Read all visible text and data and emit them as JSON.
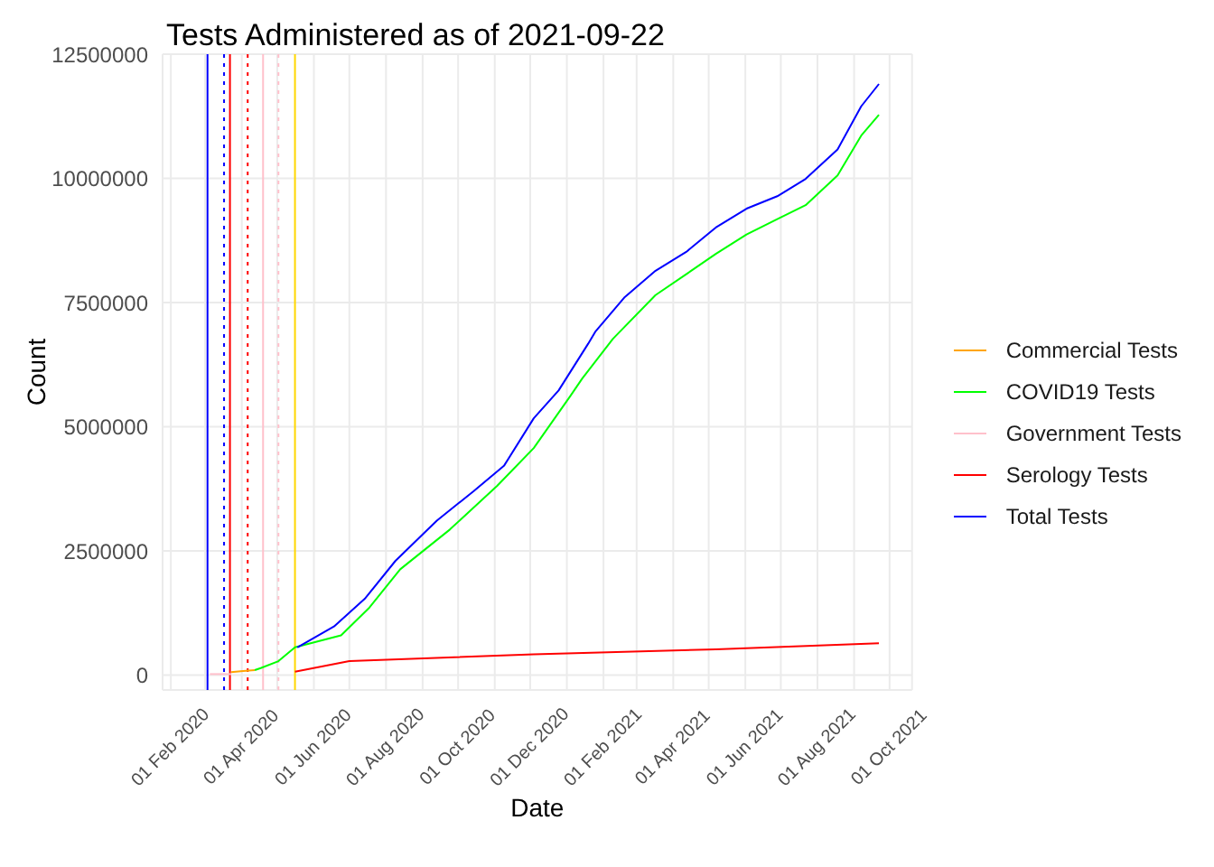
{
  "chart_data": {
    "type": "line",
    "title": "Tests Administered as of 2021-09-22",
    "xlabel": "Date",
    "ylabel": "Count",
    "xlim": [
      "2020-01-25",
      "2021-10-20"
    ],
    "xticks": [
      {
        "value": "2020-02-01",
        "label": "01 Feb 2020"
      },
      {
        "value": "2020-03-01",
        "label": null
      },
      {
        "value": "2020-04-01",
        "label": "01 Apr 2020"
      },
      {
        "value": "2020-05-01",
        "label": null
      },
      {
        "value": "2020-06-01",
        "label": "01 Jun 2020"
      },
      {
        "value": "2020-07-01",
        "label": null
      },
      {
        "value": "2020-08-01",
        "label": "01 Aug 2020"
      },
      {
        "value": "2020-09-01",
        "label": null
      },
      {
        "value": "2020-10-01",
        "label": "01 Oct 2020"
      },
      {
        "value": "2020-11-01",
        "label": null
      },
      {
        "value": "2020-12-01",
        "label": "01 Dec 2020"
      },
      {
        "value": "2021-01-01",
        "label": null
      },
      {
        "value": "2021-02-01",
        "label": "01 Feb 2021"
      },
      {
        "value": "2021-03-01",
        "label": null
      },
      {
        "value": "2021-04-01",
        "label": "01 Apr 2021"
      },
      {
        "value": "2021-05-01",
        "label": null
      },
      {
        "value": "2021-06-01",
        "label": "01 Jun 2021"
      },
      {
        "value": "2021-07-01",
        "label": null
      },
      {
        "value": "2021-08-01",
        "label": "01 Aug 2021"
      },
      {
        "value": "2021-09-01",
        "label": null
      },
      {
        "value": "2021-10-01",
        "label": "01 Oct 2021"
      }
    ],
    "ylim": [
      -300000,
      12500000
    ],
    "yticks": [
      0,
      2500000,
      5000000,
      7500000,
      10000000,
      12500000
    ],
    "grid": true,
    "legend": "right",
    "marker": "none",
    "line_style": "solid",
    "series": [
      {
        "name": "Commercial Tests",
        "color": "#ffa500",
        "x": [
          "2020-03-23",
          "2020-04-02",
          "2020-04-12"
        ],
        "values": [
          60000,
          80000,
          100000
        ]
      },
      {
        "name": "COVID19 Tests",
        "color": "#00ff00",
        "x": [
          "2020-04-12",
          "2020-04-17",
          "2020-05-02",
          "2020-05-16",
          "2020-06-24",
          "2020-07-18",
          "2020-08-13",
          "2020-09-24",
          "2020-11-03",
          "2020-12-04",
          "2021-01-04",
          "2021-01-14",
          "2021-02-09",
          "2021-03-17",
          "2021-04-12",
          "2021-05-07",
          "2021-06-02",
          "2021-06-28",
          "2021-07-22",
          "2021-08-18",
          "2021-09-07",
          "2021-09-22"
        ],
        "values": [
          100000,
          140000,
          280000,
          560000,
          800000,
          1360000,
          2130000,
          2930000,
          3810000,
          4570000,
          5620000,
          5970000,
          6770000,
          7650000,
          8070000,
          8480000,
          8870000,
          9180000,
          9460000,
          10060000,
          10860000,
          11280000
        ]
      },
      {
        "name": "Government Tests",
        "color": "#ffc0cb",
        "x": [
          "2020-03-05",
          "2020-03-23"
        ],
        "values": [
          20000,
          20000
        ]
      },
      {
        "name": "Serology Tests",
        "color": "#ff0000",
        "x": [
          "2020-05-16",
          "2020-07-01",
          "2020-12-04",
          "2021-05-07",
          "2021-09-22"
        ],
        "values": [
          70000,
          280000,
          420000,
          520000,
          640000
        ]
      },
      {
        "name": "Total Tests",
        "color": "#0000ff",
        "x": [
          "2020-05-18",
          "2020-06-18",
          "2020-07-14",
          "2020-08-09",
          "2020-09-13",
          "2020-10-14",
          "2020-11-09",
          "2020-12-04",
          "2020-12-25",
          "2021-01-19",
          "2021-01-25",
          "2021-02-19",
          "2021-03-17",
          "2021-04-12",
          "2021-05-07",
          "2021-06-02",
          "2021-06-28",
          "2021-07-22",
          "2021-08-18",
          "2021-09-07",
          "2021-09-22"
        ],
        "values": [
          559000,
          978000,
          1536000,
          2300000,
          3110000,
          3700000,
          4220000,
          5170000,
          5730000,
          6670000,
          6910000,
          7610000,
          8140000,
          8520000,
          9010000,
          9390000,
          9640000,
          9990000,
          10580000,
          11450000,
          11900000
        ]
      }
    ],
    "ref_lines": [
      {
        "axis": "x",
        "value": "2020-03-03",
        "color": "#0000ff",
        "line_style": "solid"
      },
      {
        "axis": "x",
        "value": "2020-03-17",
        "color": "#0000ff",
        "line_style": "dotted"
      },
      {
        "axis": "x",
        "value": "2020-03-22",
        "color": "#ff0000",
        "line_style": "solid"
      },
      {
        "axis": "x",
        "value": "2020-04-06",
        "color": "#ff0000",
        "line_style": "dotted"
      },
      {
        "axis": "x",
        "value": "2020-04-19",
        "color": "#ffc0cb",
        "line_style": "solid"
      },
      {
        "axis": "x",
        "value": "2020-05-02",
        "color": "#ffc0cb",
        "line_style": "dotted"
      },
      {
        "axis": "x",
        "value": "2020-05-16",
        "color": "#ffd700",
        "line_style": "solid"
      }
    ]
  }
}
